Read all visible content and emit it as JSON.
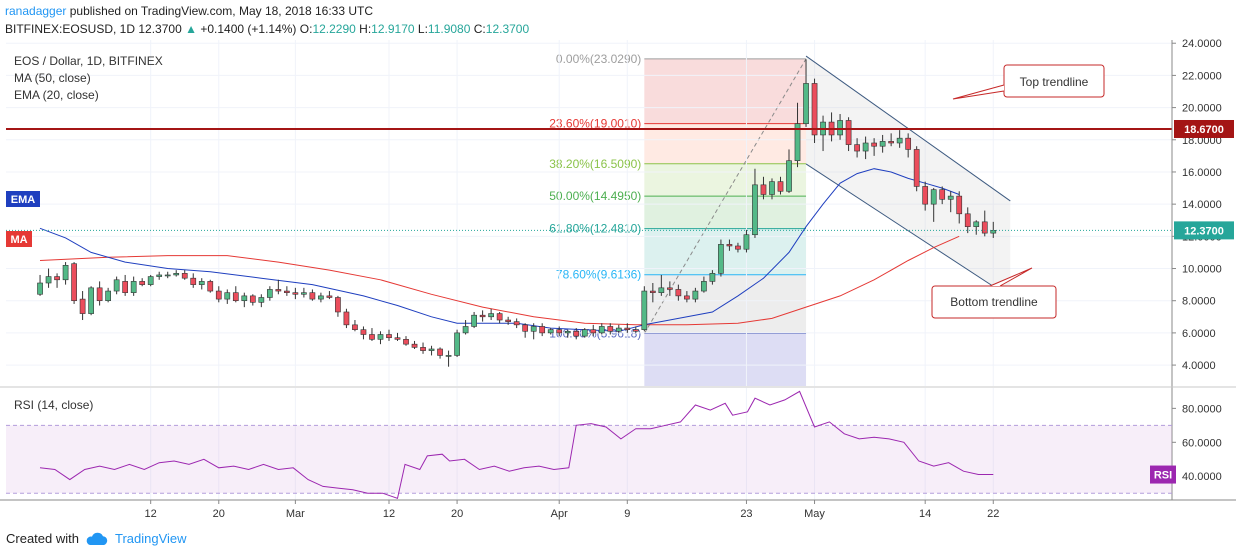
{
  "header": {
    "author": "ranadagger",
    "published_text": "published on TradingView.com, May 18, 2018 16:33 UTC",
    "symbol": "BITFINEX:EOSUSD, 1D",
    "last": "12.3700",
    "change_arrow": "▲",
    "change": "+0.1400 (+1.14%)",
    "o_label": "O:",
    "o": "12.2290",
    "h_label": "H:",
    "h": "12.9170",
    "l_label": "L:",
    "l": "11.9080",
    "c_label": "C:",
    "c": "12.3700"
  },
  "legend": {
    "title": "EOS / Dollar, 1D, BITFINEX",
    "ma": "MA (50, close)",
    "ema": "EMA (20, close)"
  },
  "tags": {
    "ema": "EMA",
    "ma": "MA",
    "rsi": "RSI"
  },
  "rsi_legend": "RSI (14, close)",
  "footer": {
    "created_with": "Created with",
    "brand": "TradingView"
  },
  "colors": {
    "up": "#26a69a",
    "down": "#ef5350",
    "candle_up_fill": "#53b987",
    "candle_down_fill": "#eb4d5c",
    "ema": "#1f3fbf",
    "ma": "#e53935",
    "rsi": "#9c27b0",
    "hline": "#a41515",
    "annot_border": "#c62828",
    "channel": "#3d5a80"
  },
  "chart_data": {
    "type": "candlestick",
    "price_axis": {
      "min": 2.7,
      "max": 24.2,
      "ticks": [
        4,
        6,
        8,
        10,
        12,
        14,
        16,
        18,
        20,
        22,
        24
      ],
      "tick_labels": [
        "4.0000",
        "6.0000",
        "8.0000",
        "10.0000",
        "12.0000",
        "14.0000",
        "16.0000",
        "18.0000",
        "20.0000",
        "22.0000",
        "24.0000"
      ]
    },
    "time_axis": {
      "days_total": 137,
      "ticks": [
        {
          "day": 13,
          "label": "12"
        },
        {
          "day": 21,
          "label": "20"
        },
        {
          "day": 30,
          "label": "Mar"
        },
        {
          "day": 41,
          "label": "12"
        },
        {
          "day": 49,
          "label": "20"
        },
        {
          "day": 61,
          "label": "Apr"
        },
        {
          "day": 69,
          "label": "9"
        },
        {
          "day": 83,
          "label": "23"
        },
        {
          "day": 91,
          "label": "May"
        },
        {
          "day": 104,
          "label": "14"
        },
        {
          "day": 112,
          "label": "22"
        }
      ]
    },
    "candles": [
      [
        8.4,
        9.6,
        8.3,
        9.1
      ],
      [
        9.1,
        10.0,
        8.8,
        9.5
      ],
      [
        9.5,
        9.7,
        8.8,
        9.3
      ],
      [
        9.3,
        10.4,
        9.0,
        10.2
      ],
      [
        10.3,
        10.4,
        7.8,
        8.0
      ],
      [
        8.1,
        8.6,
        6.8,
        7.2
      ],
      [
        7.2,
        8.9,
        7.1,
        8.8
      ],
      [
        8.8,
        9.2,
        7.7,
        8.0
      ],
      [
        8.0,
        8.8,
        7.9,
        8.6
      ],
      [
        8.6,
        9.5,
        8.4,
        9.3
      ],
      [
        9.2,
        9.6,
        8.3,
        8.5
      ],
      [
        8.5,
        9.5,
        8.3,
        9.2
      ],
      [
        9.2,
        9.4,
        8.9,
        9.0
      ],
      [
        9.0,
        9.6,
        8.9,
        9.5
      ],
      [
        9.5,
        9.8,
        9.3,
        9.6
      ],
      [
        9.6,
        9.8,
        9.4,
        9.6
      ],
      [
        9.6,
        9.9,
        9.5,
        9.7
      ],
      [
        9.7,
        9.9,
        9.3,
        9.4
      ],
      [
        9.4,
        9.7,
        8.8,
        9.0
      ],
      [
        9.0,
        9.4,
        8.7,
        9.2
      ],
      [
        9.2,
        9.3,
        8.5,
        8.6
      ],
      [
        8.6,
        8.9,
        7.9,
        8.1
      ],
      [
        8.1,
        8.7,
        7.8,
        8.5
      ],
      [
        8.5,
        8.9,
        7.9,
        8.0
      ],
      [
        8.0,
        8.5,
        7.6,
        8.3
      ],
      [
        8.3,
        8.4,
        7.7,
        7.9
      ],
      [
        7.9,
        8.4,
        7.6,
        8.2
      ],
      [
        8.2,
        8.9,
        8.0,
        8.7
      ],
      [
        8.7,
        9.3,
        8.4,
        8.6
      ],
      [
        8.6,
        8.9,
        8.3,
        8.5
      ],
      [
        8.5,
        8.8,
        8.1,
        8.4
      ],
      [
        8.4,
        8.8,
        8.2,
        8.5
      ],
      [
        8.5,
        8.7,
        8.0,
        8.1
      ],
      [
        8.1,
        8.5,
        7.9,
        8.3
      ],
      [
        8.3,
        8.6,
        8.1,
        8.2
      ],
      [
        8.2,
        8.3,
        7.0,
        7.3
      ],
      [
        7.3,
        7.5,
        6.3,
        6.5
      ],
      [
        6.5,
        6.8,
        6.1,
        6.2
      ],
      [
        6.2,
        6.4,
        5.6,
        5.9
      ],
      [
        5.9,
        6.3,
        5.5,
        5.6
      ],
      [
        5.6,
        6.1,
        5.3,
        5.9
      ],
      [
        5.9,
        6.2,
        5.5,
        5.7
      ],
      [
        5.7,
        6.0,
        5.5,
        5.6
      ],
      [
        5.6,
        5.8,
        5.2,
        5.3
      ],
      [
        5.3,
        5.5,
        5.0,
        5.1
      ],
      [
        5.1,
        5.4,
        4.7,
        4.9
      ],
      [
        4.9,
        5.2,
        4.6,
        5.0
      ],
      [
        5.0,
        5.1,
        4.4,
        4.6
      ],
      [
        4.6,
        4.9,
        3.9,
        4.6
      ],
      [
        4.6,
        6.2,
        4.5,
        6.0
      ],
      [
        6.0,
        6.8,
        5.9,
        6.4
      ],
      [
        6.4,
        7.3,
        6.3,
        7.1
      ],
      [
        7.1,
        7.4,
        6.7,
        7.0
      ],
      [
        7.0,
        7.5,
        6.8,
        7.2
      ],
      [
        7.2,
        7.3,
        6.6,
        6.8
      ],
      [
        6.8,
        7.0,
        6.5,
        6.7
      ],
      [
        6.7,
        6.9,
        6.3,
        6.5
      ],
      [
        6.5,
        6.6,
        5.7,
        6.1
      ],
      [
        6.1,
        6.6,
        5.6,
        6.4
      ],
      [
        6.4,
        6.6,
        5.8,
        6.0
      ],
      [
        6.0,
        6.3,
        5.9,
        6.2
      ],
      [
        6.2,
        6.4,
        5.8,
        6.0
      ],
      [
        6.0,
        6.2,
        5.7,
        6.1
      ],
      [
        6.1,
        6.3,
        5.6,
        5.8
      ],
      [
        5.8,
        6.3,
        5.7,
        6.2
      ],
      [
        6.2,
        6.5,
        5.8,
        6.0
      ],
      [
        6.0,
        6.6,
        5.9,
        6.4
      ],
      [
        6.4,
        6.6,
        5.9,
        6.1
      ],
      [
        6.1,
        6.5,
        6.0,
        6.3
      ],
      [
        6.3,
        6.6,
        6.0,
        6.2
      ],
      [
        6.2,
        6.4,
        6.0,
        6.1
      ],
      [
        6.2,
        8.9,
        6.1,
        8.6
      ],
      [
        8.6,
        9.1,
        7.9,
        8.5
      ],
      [
        8.5,
        9.6,
        8.3,
        8.8
      ],
      [
        8.8,
        9.2,
        8.3,
        8.7
      ],
      [
        8.7,
        9.0,
        8.0,
        8.3
      ],
      [
        8.3,
        8.6,
        7.9,
        8.1
      ],
      [
        8.1,
        8.8,
        7.9,
        8.6
      ],
      [
        8.6,
        9.5,
        8.5,
        9.2
      ],
      [
        9.2,
        9.9,
        9.0,
        9.7
      ],
      [
        9.7,
        11.8,
        9.5,
        11.5
      ],
      [
        11.5,
        11.8,
        11.1,
        11.4
      ],
      [
        11.4,
        11.6,
        11.0,
        11.2
      ],
      [
        11.2,
        12.4,
        11.0,
        12.1
      ],
      [
        12.1,
        16.2,
        11.9,
        15.2
      ],
      [
        15.2,
        15.7,
        14.3,
        14.6
      ],
      [
        14.6,
        15.6,
        14.3,
        15.4
      ],
      [
        15.4,
        15.7,
        14.6,
        14.8
      ],
      [
        14.8,
        17.4,
        14.7,
        16.7
      ],
      [
        16.7,
        20.3,
        16.3,
        19.0
      ],
      [
        19.0,
        23.0,
        18.8,
        21.5
      ],
      [
        21.5,
        21.8,
        17.8,
        18.3
      ],
      [
        18.3,
        19.5,
        17.3,
        19.1
      ],
      [
        19.1,
        19.7,
        17.9,
        18.3
      ],
      [
        18.3,
        19.6,
        18.0,
        19.2
      ],
      [
        19.2,
        19.4,
        17.3,
        17.7
      ],
      [
        17.7,
        18.1,
        16.9,
        17.3
      ],
      [
        17.3,
        18.2,
        16.8,
        17.8
      ],
      [
        17.8,
        18.1,
        17.0,
        17.6
      ],
      [
        17.6,
        18.3,
        17.2,
        17.9
      ],
      [
        17.9,
        18.4,
        17.6,
        17.8
      ],
      [
        17.8,
        18.6,
        17.5,
        18.1
      ],
      [
        18.1,
        18.4,
        16.9,
        17.4
      ],
      [
        17.4,
        17.6,
        14.8,
        15.1
      ],
      [
        15.1,
        15.4,
        13.6,
        14.0
      ],
      [
        14.0,
        15.0,
        12.9,
        14.9
      ],
      [
        14.9,
        15.1,
        14.0,
        14.3
      ],
      [
        14.3,
        14.8,
        13.5,
        14.5
      ],
      [
        14.5,
        14.8,
        12.8,
        13.4
      ],
      [
        13.4,
        13.8,
        12.2,
        12.6
      ],
      [
        12.6,
        13.0,
        12.1,
        12.9
      ],
      [
        12.9,
        13.6,
        12.0,
        12.2
      ],
      [
        12.2,
        12.9,
        11.9,
        12.37
      ]
    ],
    "ema_values": [
      [
        0,
        12.5
      ],
      [
        3,
        11.9
      ],
      [
        6,
        11.0
      ],
      [
        10,
        10.4
      ],
      [
        15,
        10.0
      ],
      [
        20,
        9.8
      ],
      [
        26,
        9.4
      ],
      [
        32,
        9.0
      ],
      [
        38,
        8.3
      ],
      [
        42,
        7.7
      ],
      [
        46,
        7.0
      ],
      [
        49,
        6.6
      ],
      [
        52,
        6.6
      ],
      [
        56,
        6.6
      ],
      [
        60,
        6.3
      ],
      [
        64,
        6.2
      ],
      [
        68,
        6.1
      ],
      [
        71,
        6.5
      ],
      [
        75,
        6.9
      ],
      [
        79,
        7.3
      ],
      [
        82,
        8.3
      ],
      [
        85,
        9.4
      ],
      [
        88,
        11.0
      ],
      [
        90,
        12.6
      ],
      [
        92,
        14.0
      ],
      [
        94,
        15.3
      ],
      [
        96,
        15.9
      ],
      [
        98,
        16.2
      ],
      [
        100,
        16.0
      ],
      [
        102,
        15.6
      ],
      [
        104,
        15.3
      ],
      [
        106,
        15.0
      ],
      [
        108,
        14.6
      ]
    ],
    "ma_values": [
      [
        0,
        10.5
      ],
      [
        8,
        10.7
      ],
      [
        15,
        10.8
      ],
      [
        22,
        10.8
      ],
      [
        28,
        10.4
      ],
      [
        34,
        9.9
      ],
      [
        40,
        9.3
      ],
      [
        46,
        8.4
      ],
      [
        52,
        7.6
      ],
      [
        58,
        7.0
      ],
      [
        64,
        6.6
      ],
      [
        70,
        6.5
      ],
      [
        76,
        6.5
      ],
      [
        82,
        6.6
      ],
      [
        86,
        6.9
      ],
      [
        90,
        7.6
      ],
      [
        94,
        8.3
      ],
      [
        98,
        9.3
      ],
      [
        102,
        10.5
      ],
      [
        105,
        11.3
      ],
      [
        108,
        12.0
      ]
    ],
    "fib_levels": [
      {
        "ratio": "0.00%",
        "value": 23.029,
        "label": "0.00%(23.0290)",
        "color": "#9e9e9e",
        "fill": "rgba(239,154,154,0.35)"
      },
      {
        "ratio": "23.60%",
        "value": 19.001,
        "label": "23.60%(19.0010)",
        "color": "#e53935",
        "fill": "rgba(255,171,145,0.25)"
      },
      {
        "ratio": "38.20%",
        "value": 16.509,
        "label": "38.20%(16.5090)",
        "color": "#8bc34a",
        "fill": "rgba(197,225,165,0.35)"
      },
      {
        "ratio": "50.00%",
        "value": 14.495,
        "label": "50.00%(14.4950)",
        "color": "#4caf50",
        "fill": "rgba(165,214,167,0.35)"
      },
      {
        "ratio": "61.80%",
        "value": 12.481,
        "label": "61.80%(12.4810)",
        "color": "#26a69a",
        "fill": "rgba(178,223,219,0.45)"
      },
      {
        "ratio": "78.60%",
        "value": 9.6136,
        "label": "78.60%(9.6136)",
        "color": "#29b6f6",
        "fill": "rgba(214,214,214,0.45)"
      },
      {
        "ratio": "100.00%",
        "value": 5.9618,
        "label": "100.00%(5.9618)",
        "color": "#5c6bc0",
        "fill": "rgba(179,179,230,0.45)"
      }
    ],
    "fib_days": [
      71,
      90
    ],
    "hline": {
      "value": 18.67,
      "label": "18.6700"
    },
    "last_price": {
      "value": 12.37,
      "label": "12.3700"
    },
    "channel": {
      "top": [
        [
          90,
          23.2
        ],
        [
          114,
          14.2
        ]
      ],
      "bottom": [
        [
          90,
          16.5
        ],
        [
          114,
          8.2
        ]
      ]
    },
    "annotations": [
      {
        "text": "Top trendline"
      },
      {
        "text": "Bottom trendline"
      }
    ],
    "rsi": {
      "axis": {
        "min": 26,
        "max": 92,
        "ticks": [
          40,
          60,
          80
        ],
        "tick_labels": [
          "40.0000",
          "60.0000",
          "80.0000"
        ]
      },
      "band": [
        30,
        70
      ],
      "values": [
        [
          0,
          45
        ],
        [
          2,
          44
        ],
        [
          4,
          38
        ],
        [
          6,
          44
        ],
        [
          8,
          46
        ],
        [
          10,
          44
        ],
        [
          12,
          47
        ],
        [
          14,
          44
        ],
        [
          16,
          48
        ],
        [
          18,
          49
        ],
        [
          20,
          47
        ],
        [
          22,
          50
        ],
        [
          24,
          45
        ],
        [
          26,
          46
        ],
        [
          28,
          44
        ],
        [
          30,
          47
        ],
        [
          32,
          44
        ],
        [
          34,
          45
        ],
        [
          36,
          38
        ],
        [
          38,
          34
        ],
        [
          40,
          33
        ],
        [
          42,
          32
        ],
        [
          44,
          30
        ],
        [
          46,
          30
        ],
        [
          48,
          27
        ],
        [
          49,
          47
        ],
        [
          51,
          44
        ],
        [
          52,
          52
        ],
        [
          54,
          53
        ],
        [
          55,
          49
        ],
        [
          57,
          50
        ],
        [
          59,
          44
        ],
        [
          61,
          46
        ],
        [
          63,
          43
        ],
        [
          65,
          45
        ],
        [
          67,
          46
        ],
        [
          69,
          44
        ],
        [
          71,
          45
        ],
        [
          72,
          70
        ],
        [
          74,
          71
        ],
        [
          76,
          69
        ],
        [
          78,
          62
        ],
        [
          80,
          68
        ],
        [
          82,
          68
        ],
        [
          84,
          70
        ],
        [
          86,
          72
        ],
        [
          88,
          82
        ],
        [
          90,
          79
        ],
        [
          92,
          83
        ],
        [
          93,
          76
        ],
        [
          95,
          78
        ],
        [
          96,
          86
        ],
        [
          98,
          82
        ],
        [
          100,
          85
        ],
        [
          102,
          90
        ],
        [
          104,
          69
        ],
        [
          106,
          72
        ],
        [
          108,
          65
        ],
        [
          110,
          62
        ],
        [
          112,
          63
        ],
        [
          114,
          62
        ],
        [
          116,
          60
        ],
        [
          118,
          49
        ],
        [
          120,
          46
        ],
        [
          122,
          48
        ],
        [
          124,
          43
        ],
        [
          126,
          41
        ],
        [
          128,
          41
        ]
      ]
    }
  }
}
